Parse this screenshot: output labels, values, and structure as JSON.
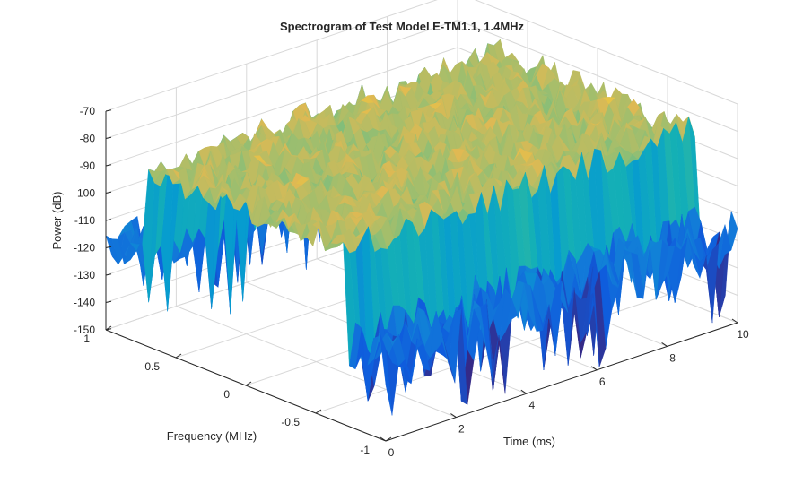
{
  "chart_data": {
    "type": "surface",
    "title": "Spectrogram of Test Model E-TM1.1, 1.4MHz",
    "xlabel": "Time (ms)",
    "ylabel": "Frequency (MHz)",
    "zlabel": "Power (dB)",
    "xlim": [
      0,
      10
    ],
    "ylim": [
      -1,
      1
    ],
    "zlim": [
      -150,
      -70
    ],
    "x_ticks": [
      0,
      2,
      4,
      6,
      8,
      10
    ],
    "x_tick_labels": [
      "0",
      "2",
      "4",
      "6",
      "8",
      "10"
    ],
    "y_ticks": [
      -1,
      -0.5,
      0,
      0.5,
      1
    ],
    "y_tick_labels": [
      "-1",
      "-0.5",
      "0",
      "0.5",
      "1"
    ],
    "z_ticks": [
      -150,
      -140,
      -130,
      -120,
      -110,
      -100,
      -90,
      -80,
      -70
    ],
    "z_tick_labels": [
      "-150",
      "-140",
      "-130",
      "-120",
      "-110",
      "-100",
      "-90",
      "-80",
      "-70"
    ],
    "grid": true,
    "colormap": "parula",
    "surface_regions": [
      {
        "frequency_range": [
          -0.7,
          0.7
        ],
        "time_range": [
          0,
          10
        ],
        "power_mean": -86,
        "power_spread": 6
      },
      {
        "frequency_range": [
          -1,
          -0.7
        ],
        "time_range": [
          0,
          10
        ],
        "power_mean": -120,
        "power_spread": 10
      },
      {
        "frequency_range": [
          0.7,
          1
        ],
        "time_range": [
          0,
          10
        ],
        "power_mean": -118,
        "power_spread": 8
      }
    ]
  }
}
